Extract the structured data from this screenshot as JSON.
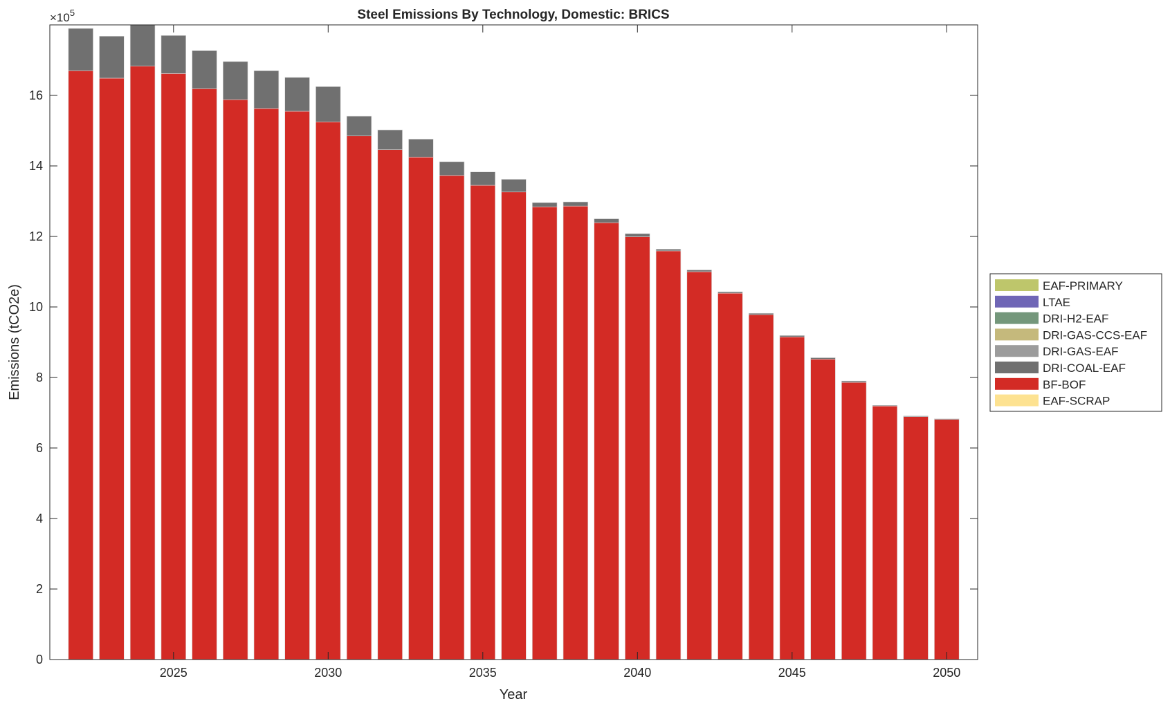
{
  "chart_data": {
    "type": "bar",
    "stacked": true,
    "title": "Steel Emissions By Technology, Domestic: BRICS",
    "xlabel": "Year",
    "ylabel": "Emissions (tCO2e)",
    "y_exponent_label": "×10",
    "y_exponent": "5",
    "xlim": [
      2021,
      2051
    ],
    "ylim": [
      0,
      18
    ],
    "y_scale_factor": 100000,
    "xticks": [
      2025,
      2030,
      2035,
      2040,
      2045,
      2050
    ],
    "yticks": [
      0,
      2,
      4,
      6,
      8,
      10,
      12,
      14,
      16
    ],
    "legend_position": "outside-right",
    "grid": false,
    "x": [
      2022,
      2023,
      2024,
      2025,
      2026,
      2027,
      2028,
      2029,
      2030,
      2031,
      2032,
      2033,
      2034,
      2035,
      2036,
      2037,
      2038,
      2039,
      2040,
      2041,
      2042,
      2043,
      2044,
      2045,
      2046,
      2047,
      2048,
      2049,
      2050
    ],
    "series": [
      {
        "name": "EAF-SCRAP",
        "color": "#fde291",
        "values": [
          0,
          0,
          0,
          0,
          0,
          0,
          0,
          0,
          0,
          0,
          0,
          0,
          0,
          0,
          0,
          0,
          0,
          0,
          0,
          0,
          0,
          0,
          0,
          0,
          0,
          0,
          0,
          0,
          0
        ]
      },
      {
        "name": "BF-BOF",
        "color": "#d32b25",
        "values": [
          16.7,
          16.49,
          16.83,
          16.62,
          16.19,
          15.88,
          15.63,
          15.55,
          15.25,
          14.85,
          14.46,
          14.25,
          13.73,
          13.45,
          13.26,
          12.84,
          12.86,
          12.39,
          11.99,
          11.59,
          11.0,
          10.39,
          9.78,
          9.15,
          8.52,
          7.86,
          7.19,
          6.89,
          6.81
        ]
      },
      {
        "name": "DRI-COAL-EAF",
        "color": "#707070",
        "values": [
          1.2,
          1.19,
          1.17,
          1.08,
          1.08,
          1.08,
          1.07,
          0.96,
          1.0,
          0.56,
          0.56,
          0.51,
          0.39,
          0.38,
          0.36,
          0.12,
          0.12,
          0.11,
          0.09,
          0.05,
          0.05,
          0.04,
          0.04,
          0.04,
          0.04,
          0.04,
          0.02,
          0.02,
          0.02
        ]
      },
      {
        "name": "DRI-GAS-EAF",
        "color": "#9c9c9c",
        "values": [
          0,
          0,
          0,
          0,
          0,
          0,
          0,
          0,
          0,
          0,
          0,
          0,
          0,
          0,
          0,
          0,
          0,
          0,
          0,
          0,
          0,
          0,
          0,
          0,
          0,
          0,
          0,
          0,
          0
        ]
      },
      {
        "name": "DRI-GAS-CCS-EAF",
        "color": "#c5b97c",
        "values": [
          0,
          0,
          0,
          0,
          0,
          0,
          0,
          0,
          0,
          0,
          0,
          0,
          0,
          0,
          0,
          0,
          0,
          0,
          0,
          0,
          0,
          0,
          0,
          0,
          0,
          0,
          0,
          0,
          0
        ]
      },
      {
        "name": "DRI-H2-EAF",
        "color": "#74977b",
        "values": [
          0,
          0,
          0,
          0,
          0,
          0,
          0,
          0,
          0,
          0,
          0,
          0,
          0,
          0,
          0,
          0,
          0,
          0,
          0,
          0,
          0,
          0,
          0,
          0,
          0,
          0,
          0,
          0,
          0
        ]
      },
      {
        "name": "LTAE",
        "color": "#6f66b6",
        "values": [
          0,
          0,
          0,
          0,
          0,
          0,
          0,
          0,
          0,
          0,
          0,
          0,
          0,
          0,
          0,
          0,
          0,
          0,
          0,
          0,
          0,
          0,
          0,
          0,
          0,
          0,
          0,
          0,
          0
        ]
      },
      {
        "name": "EAF-PRIMARY",
        "color": "#bec66b",
        "values": [
          0,
          0,
          0,
          0,
          0,
          0,
          0,
          0,
          0,
          0,
          0,
          0,
          0,
          0,
          0,
          0,
          0,
          0,
          0,
          0,
          0,
          0,
          0,
          0,
          0,
          0,
          0,
          0,
          0
        ]
      }
    ],
    "legend_order": [
      "EAF-PRIMARY",
      "LTAE",
      "DRI-H2-EAF",
      "DRI-GAS-CCS-EAF",
      "DRI-GAS-EAF",
      "DRI-COAL-EAF",
      "BF-BOF",
      "EAF-SCRAP"
    ]
  }
}
